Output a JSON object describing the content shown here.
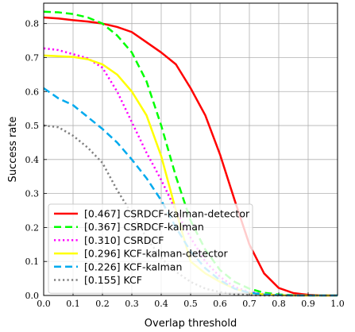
{
  "chart_data": {
    "type": "line",
    "title": "",
    "xlabel": "Overlap threshold",
    "ylabel": "Success rate",
    "xlim": [
      0,
      1
    ],
    "ylim": [
      0,
      0.86
    ],
    "xticks": [
      "0.0",
      "0.1",
      "0.2",
      "0.3",
      "0.4",
      "0.5",
      "0.6",
      "0.7",
      "0.8",
      "0.9",
      "1.0"
    ],
    "yticks": [
      "0.0",
      "0.1",
      "0.2",
      "0.3",
      "0.4",
      "0.5",
      "0.6",
      "0.7",
      "0.8"
    ],
    "grid": true,
    "legend_position": "lower-left",
    "series": [
      {
        "name": "[0.467] CSRDCF-kalman-detector",
        "color": "#ff0000",
        "dash": "solid",
        "x": [
          0,
          0.05,
          0.1,
          0.15,
          0.2,
          0.25,
          0.3,
          0.35,
          0.4,
          0.45,
          0.5,
          0.55,
          0.6,
          0.65,
          0.7,
          0.75,
          0.8,
          0.85,
          0.9,
          0.95,
          1.0
        ],
        "y": [
          0.818,
          0.815,
          0.81,
          0.806,
          0.8,
          0.79,
          0.775,
          0.745,
          0.715,
          0.68,
          0.61,
          0.53,
          0.415,
          0.28,
          0.15,
          0.065,
          0.022,
          0.007,
          0.002,
          0.0,
          0.0
        ]
      },
      {
        "name": "[0.367] CSRDCF-kalman",
        "color": "#00ff00",
        "dash": "dashed",
        "x": [
          0,
          0.05,
          0.1,
          0.15,
          0.2,
          0.25,
          0.3,
          0.35,
          0.4,
          0.45,
          0.5,
          0.55,
          0.6,
          0.65,
          0.7,
          0.75,
          0.8,
          0.85,
          0.9,
          0.95,
          1.0
        ],
        "y": [
          0.835,
          0.833,
          0.828,
          0.818,
          0.8,
          0.765,
          0.715,
          0.63,
          0.5,
          0.35,
          0.22,
          0.135,
          0.075,
          0.04,
          0.02,
          0.008,
          0.003,
          0.001,
          0.0,
          0.0,
          0.0
        ]
      },
      {
        "name": "[0.310] CSRDCF",
        "color": "#ff00ff",
        "dash": "dotted",
        "x": [
          0,
          0.05,
          0.1,
          0.15,
          0.2,
          0.25,
          0.3,
          0.35,
          0.4,
          0.45,
          0.5,
          0.55,
          0.6,
          0.65,
          0.7,
          0.75,
          0.8,
          0.85,
          0.9,
          0.95,
          1.0
        ],
        "y": [
          0.727,
          0.722,
          0.71,
          0.698,
          0.67,
          0.6,
          0.51,
          0.42,
          0.34,
          0.25,
          0.17,
          0.1,
          0.055,
          0.025,
          0.01,
          0.004,
          0.001,
          0.0,
          0.0,
          0.0,
          0.0
        ]
      },
      {
        "name": "[0.296] KCF-kalman-detector",
        "color": "#ffff00",
        "dash": "solid",
        "x": [
          0,
          0.05,
          0.1,
          0.15,
          0.2,
          0.25,
          0.3,
          0.35,
          0.4,
          0.45,
          0.5,
          0.55,
          0.6,
          0.65,
          0.7,
          0.75,
          0.8,
          0.85,
          0.9,
          0.95,
          1.0
        ],
        "y": [
          0.706,
          0.704,
          0.702,
          0.695,
          0.68,
          0.65,
          0.6,
          0.53,
          0.41,
          0.25,
          0.1,
          0.065,
          0.04,
          0.02,
          0.008,
          0.003,
          0.001,
          0.0,
          0.0,
          0.0,
          0.0
        ]
      },
      {
        "name": "[0.226] KCF-kalman",
        "color": "#00aaee",
        "dash": "dashed",
        "x": [
          0,
          0.05,
          0.1,
          0.15,
          0.2,
          0.25,
          0.3,
          0.35,
          0.4,
          0.45,
          0.5,
          0.55,
          0.6,
          0.65,
          0.7,
          0.75,
          0.8,
          0.85,
          0.9,
          0.95,
          1.0
        ],
        "y": [
          0.61,
          0.58,
          0.56,
          0.525,
          0.49,
          0.45,
          0.4,
          0.345,
          0.28,
          0.2,
          0.13,
          0.08,
          0.045,
          0.02,
          0.008,
          0.003,
          0.001,
          0.0,
          0.0,
          0.0,
          0.0
        ]
      },
      {
        "name": "[0.155] KCF",
        "color": "#808080",
        "dash": "dotted",
        "x": [
          0,
          0.05,
          0.1,
          0.15,
          0.2,
          0.25,
          0.3,
          0.35,
          0.4,
          0.45,
          0.5,
          0.55,
          0.6,
          0.65,
          0.7,
          0.75,
          0.8,
          0.85,
          0.9,
          0.95,
          1.0
        ],
        "y": [
          0.5,
          0.495,
          0.47,
          0.435,
          0.39,
          0.31,
          0.24,
          0.17,
          0.11,
          0.07,
          0.04,
          0.02,
          0.01,
          0.004,
          0.001,
          0.0,
          0.0,
          0.0,
          0.0,
          0.0,
          0.0
        ]
      }
    ]
  }
}
